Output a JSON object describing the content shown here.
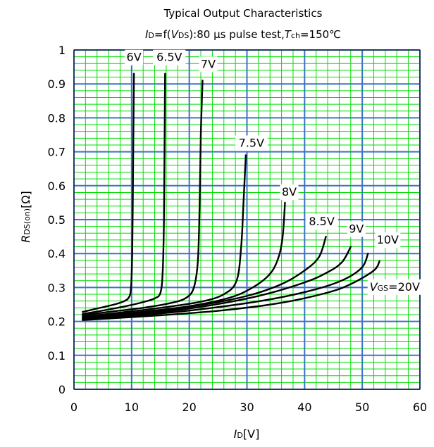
{
  "chart_data": {
    "type": "line",
    "title": "Typical Output Characteristics",
    "subtitle": {
      "i_sym": "I",
      "i_sub": "D",
      "mid1": "=f(",
      "v_sym": "V",
      "v_sub": "DS",
      "mid2": "):80 μs pulse test,",
      "t_sym": "T",
      "t_sub": "ch",
      "t_tail": "=150℃"
    },
    "xlabel": {
      "sym": "I",
      "sub": "D",
      "unit": "[V]"
    },
    "ylabel": {
      "sym": "R",
      "sub": "DS(on)",
      "unit": "[Ω]"
    },
    "xlim": [
      0,
      60
    ],
    "ylim": [
      0,
      1
    ],
    "x_ticks": [
      "0",
      "10",
      "20",
      "30",
      "40",
      "50",
      "60"
    ],
    "y_ticks": [
      "0",
      "0.1",
      "0.2",
      "0.3",
      "0.4",
      "0.5",
      "0.6",
      "0.7",
      "0.8",
      "0.9",
      "1"
    ],
    "grid": true,
    "legend_prefix": {
      "sym": "V",
      "sub": "GS",
      "tail": "=20V"
    },
    "series": [
      {
        "name": "6V",
        "points": [
          [
            1.5,
            0.228
          ],
          [
            4,
            0.238
          ],
          [
            7,
            0.25
          ],
          [
            8.5,
            0.258
          ],
          [
            9.5,
            0.27
          ],
          [
            9.9,
            0.3
          ],
          [
            10.1,
            0.4
          ],
          [
            10.2,
            0.55
          ],
          [
            10.3,
            0.75
          ],
          [
            10.4,
            0.93
          ]
        ]
      },
      {
        "name": "6.5V",
        "points": [
          [
            1.5,
            0.222
          ],
          [
            5,
            0.232
          ],
          [
            9,
            0.245
          ],
          [
            12,
            0.257
          ],
          [
            14,
            0.268
          ],
          [
            15,
            0.285
          ],
          [
            15.4,
            0.35
          ],
          [
            15.6,
            0.5
          ],
          [
            15.7,
            0.7
          ],
          [
            15.8,
            0.93
          ]
        ]
      },
      {
        "name": "7V",
        "points": [
          [
            1.5,
            0.218
          ],
          [
            6,
            0.228
          ],
          [
            12,
            0.24
          ],
          [
            17,
            0.255
          ],
          [
            19.5,
            0.27
          ],
          [
            20.8,
            0.3
          ],
          [
            21.5,
            0.38
          ],
          [
            21.8,
            0.55
          ],
          [
            22,
            0.75
          ],
          [
            22.3,
            0.91
          ]
        ]
      },
      {
        "name": "7.5V",
        "points": [
          [
            1.5,
            0.214
          ],
          [
            8,
            0.226
          ],
          [
            15,
            0.24
          ],
          [
            22,
            0.258
          ],
          [
            26,
            0.28
          ],
          [
            28.2,
            0.32
          ],
          [
            29,
            0.42
          ],
          [
            29.4,
            0.55
          ],
          [
            29.8,
            0.69
          ]
        ]
      },
      {
        "name": "8V",
        "points": [
          [
            1.5,
            0.212
          ],
          [
            10,
            0.225
          ],
          [
            20,
            0.245
          ],
          [
            27,
            0.27
          ],
          [
            31,
            0.3
          ],
          [
            34,
            0.34
          ],
          [
            35.5,
            0.39
          ],
          [
            36.2,
            0.45
          ],
          [
            36.6,
            0.55
          ]
        ]
      },
      {
        "name": "8.5V",
        "points": [
          [
            1.5,
            0.21
          ],
          [
            12,
            0.225
          ],
          [
            22,
            0.248
          ],
          [
            30,
            0.275
          ],
          [
            36,
            0.31
          ],
          [
            40,
            0.35
          ],
          [
            42.5,
            0.39
          ],
          [
            43.7,
            0.45
          ]
        ]
      },
      {
        "name": "9V",
        "points": [
          [
            1.5,
            0.208
          ],
          [
            12,
            0.222
          ],
          [
            22,
            0.243
          ],
          [
            32,
            0.275
          ],
          [
            40,
            0.315
          ],
          [
            44,
            0.345
          ],
          [
            46.5,
            0.375
          ],
          [
            48,
            0.42
          ]
        ]
      },
      {
        "name": "10V",
        "points": [
          [
            1.5,
            0.206
          ],
          [
            14,
            0.222
          ],
          [
            24,
            0.24
          ],
          [
            34,
            0.265
          ],
          [
            42,
            0.295
          ],
          [
            47,
            0.325
          ],
          [
            50,
            0.36
          ],
          [
            51,
            0.4
          ]
        ]
      },
      {
        "name": "20V",
        "points": [
          [
            1.5,
            0.204
          ],
          [
            15,
            0.218
          ],
          [
            26,
            0.233
          ],
          [
            36,
            0.255
          ],
          [
            44,
            0.285
          ],
          [
            48,
            0.31
          ],
          [
            52,
            0.35
          ],
          [
            53,
            0.378
          ]
        ]
      }
    ],
    "colors": {
      "minor_grid": "#00dd00",
      "major_grid": "#3a73c4",
      "curve": "#000000",
      "frame": "#000000"
    }
  }
}
